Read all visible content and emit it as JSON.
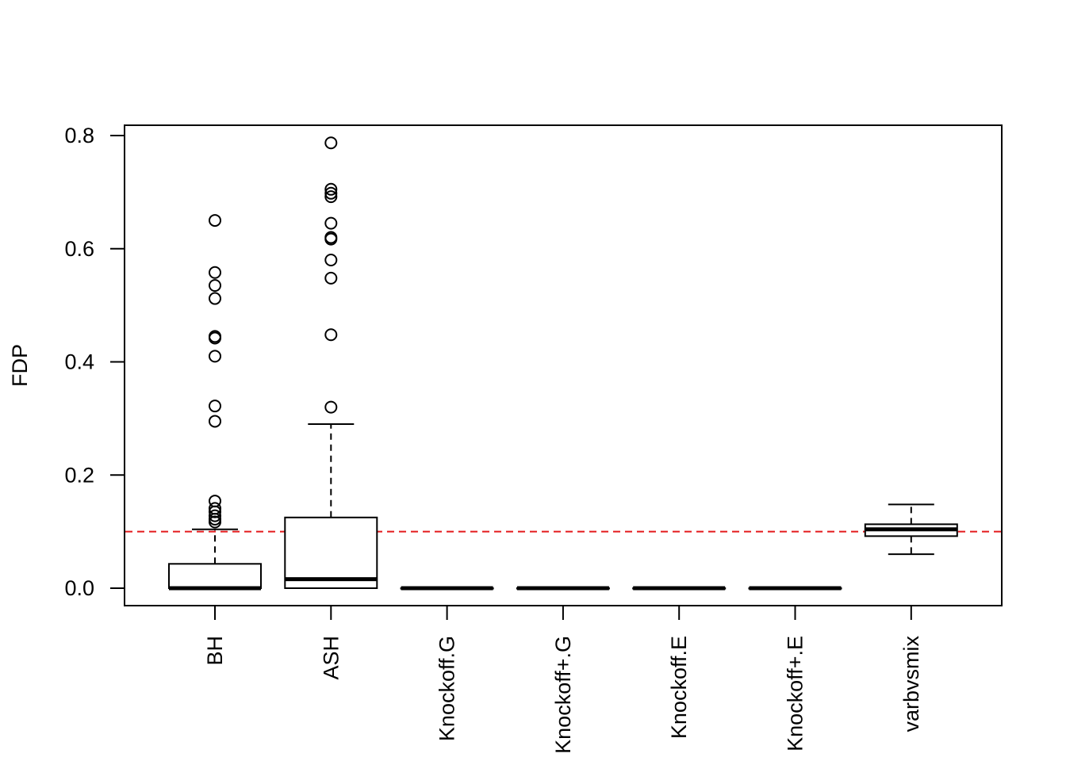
{
  "chart_data": {
    "type": "boxplot",
    "title": "",
    "xlabel": "",
    "ylabel": "FDP",
    "ylim": [
      -0.03,
      0.82
    ],
    "yticks": [
      0.0,
      0.2,
      0.4,
      0.6,
      0.8
    ],
    "ytick_labels": [
      "0.0",
      "0.2",
      "0.4",
      "0.6",
      "0.8"
    ],
    "reference_line": {
      "y": 0.1,
      "color": "#e31a1c",
      "style": "dashed"
    },
    "categories": [
      "BH",
      "ASH",
      "Knockoff.G",
      "Knockoff+.G",
      "Knockoff.E",
      "Knockoff+.E",
      "varbvsmix"
    ],
    "boxes": [
      {
        "name": "BH",
        "min": 0.0,
        "q1": 0.0,
        "median": 0.0,
        "q3": 0.043,
        "max": 0.104,
        "outliers": [
          0.65,
          0.558,
          0.535,
          0.512,
          0.445,
          0.442,
          0.41,
          0.322,
          0.295,
          0.154,
          0.141,
          0.135,
          0.128,
          0.122,
          0.117
        ]
      },
      {
        "name": "ASH",
        "min": 0.0,
        "q1": 0.0,
        "median": 0.016,
        "q3": 0.125,
        "max": 0.29,
        "outliers": [
          0.787,
          0.705,
          0.698,
          0.692,
          0.645,
          0.62,
          0.617,
          0.58,
          0.548,
          0.448,
          0.32
        ]
      },
      {
        "name": "Knockoff.G",
        "min": 0.0,
        "q1": 0.0,
        "median": 0.0,
        "q3": 0.0,
        "max": 0.0,
        "outliers": []
      },
      {
        "name": "Knockoff+.G",
        "min": 0.0,
        "q1": 0.0,
        "median": 0.0,
        "q3": 0.0,
        "max": 0.0,
        "outliers": []
      },
      {
        "name": "Knockoff.E",
        "min": 0.0,
        "q1": 0.0,
        "median": 0.0,
        "q3": 0.0,
        "max": 0.0,
        "outliers": []
      },
      {
        "name": "Knockoff+.E",
        "min": 0.0,
        "q1": 0.0,
        "median": 0.0,
        "q3": 0.0,
        "max": 0.0,
        "outliers": []
      },
      {
        "name": "varbvsmix",
        "min": 0.06,
        "q1": 0.092,
        "median": 0.104,
        "q3": 0.113,
        "max": 0.148,
        "outliers": []
      }
    ]
  }
}
